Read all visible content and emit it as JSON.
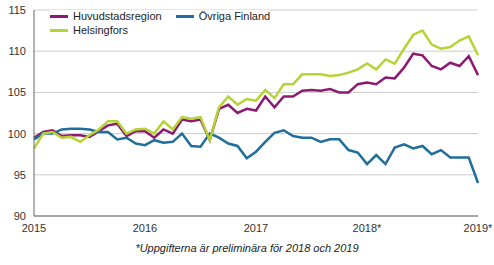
{
  "chart_data": {
    "type": "line",
    "footnote": "*Uppgifterna är preliminära för 2018 och 2019",
    "categories": [
      "2015",
      null,
      null,
      null,
      null,
      null,
      null,
      null,
      null,
      null,
      null,
      null,
      "2016",
      null,
      null,
      null,
      null,
      null,
      null,
      null,
      null,
      null,
      null,
      null,
      "2017",
      null,
      null,
      null,
      null,
      null,
      null,
      null,
      null,
      null,
      null,
      null,
      "2018*",
      null,
      null,
      null,
      null,
      null,
      null,
      null,
      null,
      null,
      null,
      null,
      "2019*"
    ],
    "series": [
      {
        "name": "Huvudstadsregion",
        "color": "#8c1a72",
        "values": [
          99.5,
          100.2,
          100.4,
          99.7,
          99.8,
          99.8,
          99.6,
          100.3,
          101,
          101.2,
          99.7,
          100.3,
          100.3,
          99.5,
          100.5,
          100,
          101.7,
          101.5,
          101.7,
          99.2,
          103,
          103.5,
          102.5,
          103,
          102.8,
          104.5,
          103.2,
          104.5,
          104.5,
          105.2,
          105.3,
          105.2,
          105.4,
          105,
          105,
          106,
          106.2,
          106,
          106.8,
          106.7,
          108,
          109.7,
          109.5,
          108.2,
          107.8,
          108.6,
          108.2,
          109.4,
          107.1
        ]
      },
      {
        "name": "Övriga Finland",
        "color": "#1f6e9c",
        "values": [
          99.3,
          100,
          100,
          100.5,
          100.6,
          100.6,
          100.5,
          100.2,
          100.2,
          99.3,
          99.5,
          98.8,
          98.6,
          99.2,
          98.9,
          99,
          100,
          98.5,
          98.4,
          100,
          99.5,
          98.8,
          98.5,
          97,
          97.8,
          99,
          100.1,
          100.4,
          99.7,
          99.5,
          99.5,
          99,
          99.3,
          99.3,
          98,
          97.7,
          96.3,
          97.4,
          96.3,
          98.3,
          98.7,
          98.2,
          98.5,
          97.5,
          98,
          97.1,
          97.1,
          97.1,
          94
        ]
      },
      {
        "name": "Helsingfors",
        "color": "#b5d334",
        "values": [
          98.2,
          100,
          100.2,
          99.5,
          99.6,
          99,
          99.8,
          100.5,
          101.5,
          101.5,
          100,
          100.5,
          100.6,
          100,
          101.5,
          100.5,
          102,
          101.8,
          102,
          99.2,
          103.2,
          104.5,
          103.5,
          104.2,
          104,
          105.3,
          104.3,
          106,
          106,
          107.2,
          107.2,
          107.2,
          107,
          107.1,
          107.4,
          107.8,
          108.5,
          107.8,
          109,
          108.5,
          110.3,
          112,
          112.5,
          110.8,
          110.3,
          110.5,
          111.3,
          111.8,
          109.5
        ]
      }
    ],
    "ylim": [
      90,
      115
    ],
    "yticks": [
      90,
      95,
      100,
      105,
      110,
      115
    ],
    "grid": true,
    "legend": "top-left"
  }
}
